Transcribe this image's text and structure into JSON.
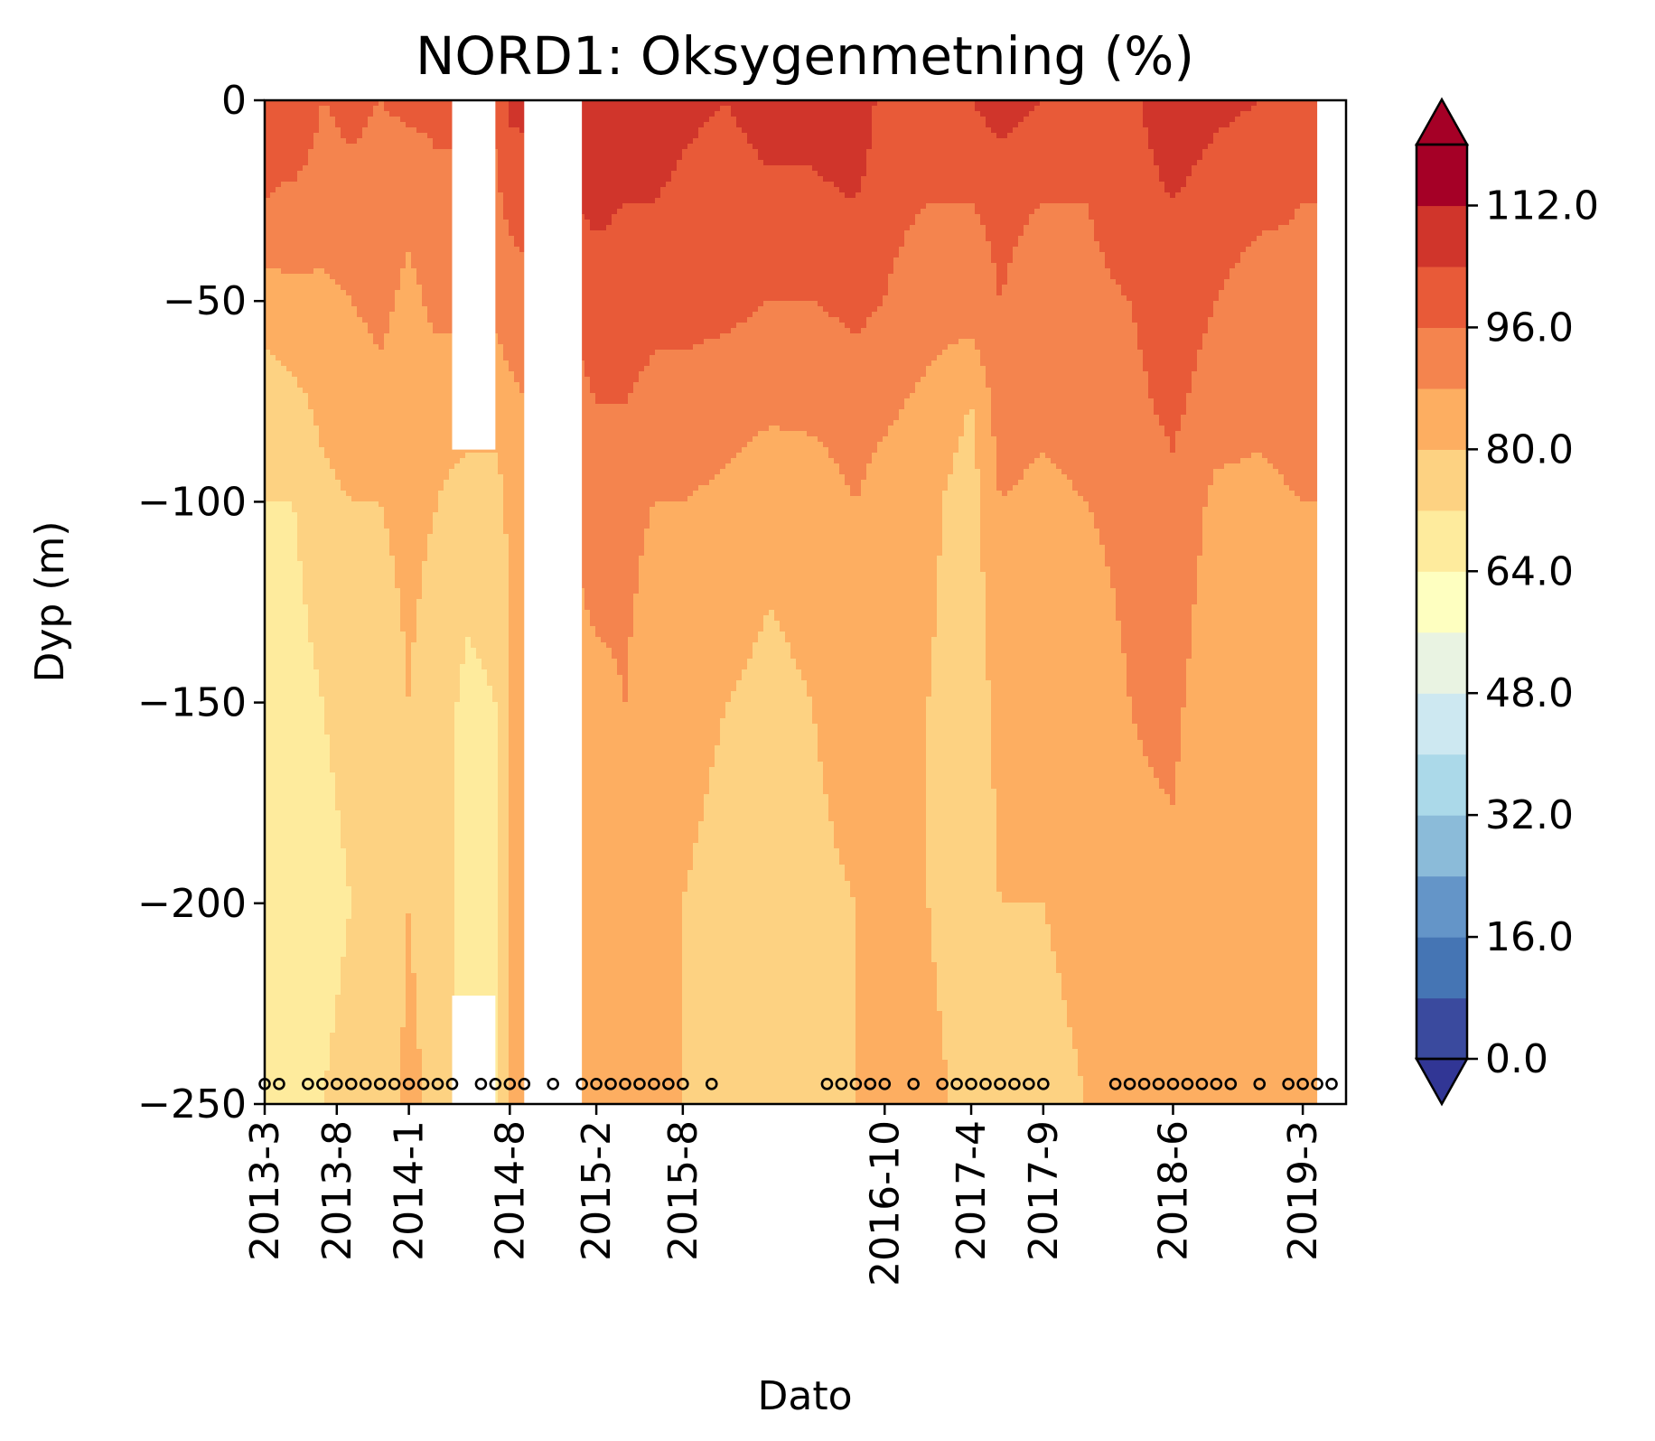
{
  "chart_data": {
    "type": "heatmap",
    "subtype": "filled-contour",
    "title": "NORD1: Oksygenmetning (%)",
    "xlabel": "Dato",
    "ylabel": "Dyp (m)",
    "ylim": [
      -250,
      0
    ],
    "yticks": [
      0,
      -50,
      -100,
      -150,
      -200,
      -250
    ],
    "ytick_labels": [
      "0",
      "−50",
      "−100",
      "−150",
      "−200",
      "−250"
    ],
    "xlim": [
      "2013-03",
      "2019-06"
    ],
    "xticks": [
      {
        "label": "2013-3",
        "date": "2013-03"
      },
      {
        "label": "2013-8",
        "date": "2013-08"
      },
      {
        "label": "2014-1",
        "date": "2014-01"
      },
      {
        "label": "2014-8",
        "date": "2014-08"
      },
      {
        "label": "2015-2",
        "date": "2015-02"
      },
      {
        "label": "2015-8",
        "date": "2015-08"
      },
      {
        "label": "2016-10",
        "date": "2016-10"
      },
      {
        "label": "2017-4",
        "date": "2017-04"
      },
      {
        "label": "2017-9",
        "date": "2017-09"
      },
      {
        "label": "2018-6",
        "date": "2018-06"
      },
      {
        "label": "2019-3",
        "date": "2019-03"
      }
    ],
    "colorbar": {
      "levels": [
        0,
        8,
        16,
        24,
        32,
        40,
        48,
        56,
        64,
        72,
        80,
        88,
        96,
        104,
        112
      ],
      "tick_values": [
        0,
        16,
        32,
        48,
        64,
        80,
        96,
        112
      ],
      "tick_labels": [
        "0.0",
        "16.0",
        "32.0",
        "48.0",
        "64.0",
        "80.0",
        "96.0",
        "112.0"
      ],
      "colors": [
        "#3a4a9e",
        "#4575b4",
        "#6495c8",
        "#8bbbd9",
        "#abd9e9",
        "#cde8f1",
        "#e9f3e2",
        "#feffc0",
        "#feeb9d",
        "#fdd282",
        "#fdae61",
        "#f4844e",
        "#e85a38",
        "#d0352b",
        "#a50026"
      ],
      "extend": "both",
      "under_color": "#313695",
      "over_color": "#a50026"
    },
    "sample_depth": -245,
    "sample_dates": [
      "2013-03",
      "2013-04",
      "2013-06",
      "2013-07",
      "2013-08",
      "2013-09",
      "2013-10",
      "2013-11",
      "2013-12",
      "2014-01",
      "2014-02",
      "2014-03",
      "2014-04",
      "2014-06",
      "2014-07",
      "2014-08",
      "2014-09",
      "2014-11",
      "2015-01",
      "2015-02",
      "2015-03",
      "2015-04",
      "2015-05",
      "2015-06",
      "2015-07",
      "2015-08",
      "2015-10",
      "2016-06",
      "2016-07",
      "2016-08",
      "2016-09",
      "2016-10",
      "2016-12",
      "2017-02",
      "2017-03",
      "2017-04",
      "2017-05",
      "2017-06",
      "2017-07",
      "2017-08",
      "2017-09",
      "2018-02",
      "2018-03",
      "2018-04",
      "2018-05",
      "2018-06",
      "2018-07",
      "2018-08",
      "2018-09",
      "2018-10",
      "2018-12",
      "2019-02",
      "2019-03",
      "2019-04",
      "2019-05"
    ],
    "gaps": [
      {
        "from": "2014-04",
        "to": "2014-07",
        "depth_from": 0,
        "depth_to": -87
      },
      {
        "from": "2014-04",
        "to": "2014-07",
        "depth_from": -223,
        "depth_to": -250
      },
      {
        "from": "2014-09",
        "to": "2015-01",
        "depth_from": 0,
        "depth_to": -250
      },
      {
        "from": "2019-04",
        "to": "2019-06",
        "depth_from": 0,
        "depth_to": -250
      }
    ],
    "column_dates": [
      "2013-03",
      "2013-05",
      "2013-07",
      "2013-09",
      "2013-11",
      "2014-01",
      "2014-03",
      "2014-05",
      "2014-07",
      "2014-08",
      "2015-02",
      "2015-04",
      "2015-06",
      "2015-08",
      "2015-11",
      "2016-02",
      "2016-05",
      "2016-08",
      "2016-10",
      "2017-01",
      "2017-04",
      "2017-06",
      "2017-09",
      "2017-12",
      "2018-03",
      "2018-06",
      "2018-09",
      "2018-12",
      "2019-03"
    ],
    "profile_depths": [
      0,
      -25,
      -50,
      -75,
      -100,
      -150,
      -200,
      -250
    ],
    "profiles": [
      [
        100,
        96,
        84,
        75,
        72,
        70,
        70,
        72
      ],
      [
        104,
        94,
        86,
        78,
        72,
        68,
        68,
        70
      ],
      [
        96,
        92,
        86,
        82,
        78,
        72,
        70,
        72
      ],
      [
        98,
        94,
        88,
        84,
        80,
        74,
        72,
        74
      ],
      [
        96,
        92,
        90,
        86,
        80,
        76,
        74,
        76
      ],
      [
        98,
        90,
        86,
        84,
        82,
        80,
        80,
        82
      ],
      [
        98,
        94,
        90,
        84,
        80,
        76,
        76,
        78
      ],
      [
        98,
        94,
        90,
        84,
        76,
        70,
        68,
        70
      ],
      [
        98,
        94,
        90,
        84,
        76,
        72,
        70,
        72
      ],
      [
        106,
        98,
        92,
        86,
        82,
        80,
        80,
        80
      ],
      [
        108,
        106,
        100,
        96,
        92,
        86,
        82,
        82
      ],
      [
        112,
        104,
        100,
        96,
        90,
        88,
        86,
        86
      ],
      [
        110,
        104,
        98,
        94,
        88,
        84,
        82,
        82
      ],
      [
        106,
        102,
        98,
        94,
        88,
        82,
        80,
        80
      ],
      [
        104,
        100,
        98,
        92,
        86,
        80,
        78,
        78
      ],
      [
        108,
        102,
        96,
        90,
        82,
        78,
        78,
        80
      ],
      [
        108,
        102,
        96,
        90,
        84,
        80,
        78,
        80
      ],
      [
        112,
        104,
        98,
        92,
        88,
        84,
        80,
        80
      ],
      [
        100,
        98,
        96,
        90,
        84,
        80,
        80,
        82
      ],
      [
        98,
        96,
        92,
        86,
        82,
        80,
        80,
        82
      ],
      [
        104,
        96,
        92,
        80,
        76,
        76,
        76,
        78
      ],
      [
        108,
        98,
        96,
        92,
        88,
        82,
        80,
        80
      ],
      [
        104,
        96,
        92,
        90,
        86,
        82,
        80,
        78
      ],
      [
        98,
        96,
        94,
        92,
        88,
        84,
        82,
        80
      ],
      [
        102,
        100,
        96,
        94,
        90,
        88,
        86,
        84
      ],
      [
        110,
        104,
        100,
        98,
        94,
        90,
        86,
        84
      ],
      [
        106,
        100,
        96,
        92,
        86,
        82,
        80,
        80
      ],
      [
        104,
        98,
        92,
        90,
        86,
        84,
        82,
        82
      ],
      [
        100,
        96,
        94,
        92,
        88,
        86,
        84,
        84
      ]
    ]
  }
}
